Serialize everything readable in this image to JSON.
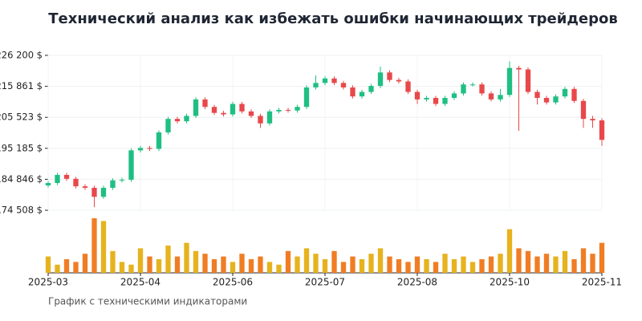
{
  "chart_data": {
    "type": "candlestick",
    "title": "Технический анализ как избежать ошибки начинающих трейдеров",
    "caption": "График с техническими индикаторами",
    "open": [
      182800,
      183600,
      186300,
      185000,
      182500,
      182000,
      179000,
      182000,
      184500,
      184700,
      194500,
      195300,
      195000,
      200500,
      205000,
      204200,
      206000,
      211500,
      209000,
      207000,
      206500,
      210000,
      207500,
      206000,
      203500,
      207500,
      208000,
      207800,
      209000,
      215500,
      217000,
      218500,
      217000,
      215500,
      212500,
      214000,
      216000,
      220500,
      218000,
      217500,
      214000,
      211500,
      212000,
      210000,
      212000,
      213500,
      216500,
      216500,
      213500,
      211500,
      213000,
      222000,
      221500,
      214000,
      212000,
      210500,
      212500,
      215000,
      211000,
      205000,
      204500
    ],
    "high": [
      184300,
      187000,
      187000,
      185700,
      183200,
      182700,
      182700,
      185200,
      185400,
      195200,
      196000,
      196000,
      201200,
      205700,
      205700,
      206700,
      212200,
      212200,
      209700,
      207700,
      210700,
      210700,
      208200,
      206700,
      208200,
      208700,
      208700,
      209700,
      216200,
      219500,
      219200,
      219200,
      217700,
      216200,
      214700,
      216700,
      222500,
      221200,
      218700,
      218200,
      214700,
      212700,
      212700,
      212700,
      214200,
      217200,
      217200,
      217200,
      214200,
      215000,
      224200,
      222700,
      222200,
      214700,
      212700,
      213200,
      215700,
      215700,
      211700,
      206000,
      205200
    ],
    "low": [
      182100,
      182900,
      184300,
      181800,
      181300,
      175500,
      178300,
      181300,
      183800,
      184000,
      193800,
      194300,
      194300,
      199800,
      203500,
      203500,
      205300,
      208300,
      206300,
      205800,
      205800,
      206800,
      205300,
      202000,
      202800,
      206800,
      207100,
      207100,
      208300,
      214800,
      216300,
      216300,
      214800,
      211800,
      211800,
      213300,
      215300,
      217300,
      216800,
      213300,
      210000,
      210800,
      209300,
      209300,
      211300,
      212800,
      215800,
      212800,
      210800,
      210800,
      212300,
      201000,
      213300,
      209800,
      209800,
      209800,
      211800,
      210300,
      202000,
      202000,
      196000
    ],
    "close": [
      183600,
      186300,
      185000,
      182500,
      182000,
      179000,
      182000,
      184500,
      184700,
      194500,
      195300,
      195000,
      200500,
      205000,
      204200,
      206000,
      211500,
      209000,
      207000,
      206500,
      210000,
      207500,
      206000,
      203500,
      207500,
      208000,
      207800,
      209000,
      215500,
      217000,
      218500,
      217000,
      215500,
      212500,
      214000,
      216000,
      220500,
      218000,
      217500,
      214000,
      211500,
      212000,
      210000,
      212000,
      213500,
      216500,
      216500,
      213500,
      211500,
      213000,
      222000,
      221500,
      214000,
      212000,
      210500,
      212500,
      215000,
      211000,
      205000,
      204500,
      198000
    ],
    "volume": [
      30,
      15,
      25,
      20,
      35,
      100,
      95,
      40,
      20,
      15,
      45,
      30,
      25,
      50,
      30,
      55,
      40,
      35,
      25,
      30,
      20,
      35,
      25,
      30,
      20,
      15,
      40,
      30,
      45,
      35,
      25,
      40,
      20,
      30,
      25,
      35,
      45,
      30,
      25,
      20,
      30,
      25,
      20,
      35,
      25,
      30,
      20,
      25,
      30,
      35,
      80,
      45,
      40,
      30,
      35,
      30,
      40,
      25,
      45,
      35,
      55
    ],
    "up_color": "#1fbf83",
    "down_color": "#e8484a",
    "volume_up_color": "#e6b31e",
    "volume_down_color": "#f07d24",
    "xlim": [
      0,
      60
    ],
    "xticks": [
      {
        "value": 0,
        "label": "2025-03"
      },
      {
        "value": 10,
        "label": "2025-04"
      },
      {
        "value": 20,
        "label": "2025-06"
      },
      {
        "value": 30,
        "label": "2025-07"
      },
      {
        "value": 40,
        "label": "2025-08"
      },
      {
        "value": 50,
        "label": "2025-10"
      },
      {
        "value": 60,
        "label": "2025-11"
      }
    ],
    "ylim": [
      174508,
      226200
    ],
    "yticks": [
      {
        "value": 174508,
        "label": "174 508 $"
      },
      {
        "value": 184846,
        "label": "184 846 $"
      },
      {
        "value": 195185,
        "label": "195 185 $"
      },
      {
        "value": 205523,
        "label": "205 523 $"
      },
      {
        "value": 215861,
        "label": "215 861 $"
      },
      {
        "value": 226200,
        "label": "226 200 $"
      }
    ],
    "grid": true
  }
}
